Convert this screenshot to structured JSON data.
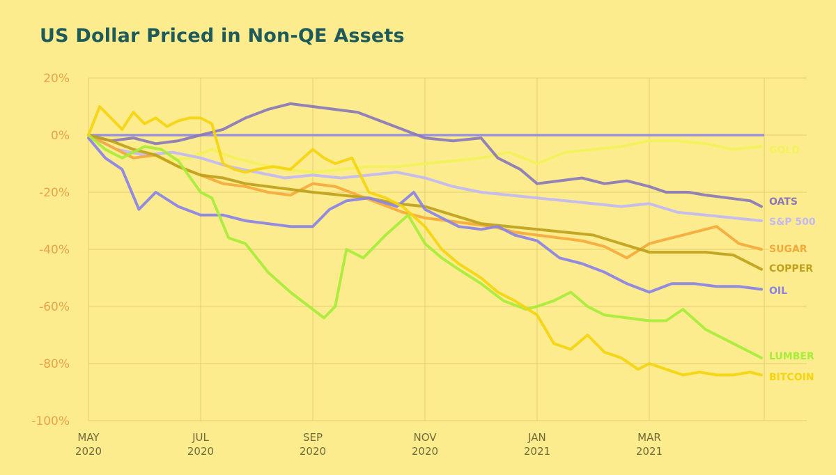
{
  "chart_data": {
    "type": "line",
    "title": "US Dollar Priced in Non-QE Assets",
    "xlabel": "",
    "ylabel": "",
    "ylim": [
      -100,
      20
    ],
    "y_ticks": [
      "20%",
      "0%",
      "-20%",
      "-40%",
      "-60%",
      "-80%",
      "-100%"
    ],
    "y_tick_values": [
      20,
      0,
      -20,
      -40,
      -60,
      -80,
      -100
    ],
    "x_ticks": [
      {
        "month": "MAY",
        "year": "2020",
        "t": 0
      },
      {
        "month": "JUL",
        "year": "2020",
        "t": 2
      },
      {
        "month": "SEP",
        "year": "2020",
        "t": 4
      },
      {
        "month": "NOV",
        "year": "2020",
        "t": 6
      },
      {
        "month": "JAN",
        "year": "2021",
        "t": 8
      },
      {
        "month": "MAR",
        "year": "2021",
        "t": 10
      }
    ],
    "x_range_months": [
      0,
      12.05
    ],
    "baseline_color": "#9a92d8",
    "series": [
      {
        "name": "GOLD",
        "color": "#f2f25a",
        "t": [
          0,
          0.3,
          0.6,
          1,
          1.4,
          1.8,
          2.2,
          2.6,
          3,
          3.5,
          4,
          4.5,
          5,
          5.5,
          6,
          6.5,
          7,
          7.5,
          8,
          8.5,
          9,
          9.5,
          10,
          10.5,
          11,
          11.5,
          12
        ],
        "values": [
          0,
          -3,
          -6,
          -6,
          -9,
          -8,
          -5,
          -8,
          -10,
          -12,
          -13,
          -12,
          -11,
          -11,
          -10,
          -9,
          -8,
          -6,
          -10,
          -6,
          -5,
          -4,
          -2,
          -2,
          -3,
          -5,
          -4
        ]
      },
      {
        "name": "OATS",
        "color": "#8a78b8",
        "t": [
          0,
          0.4,
          0.8,
          1.2,
          1.6,
          2,
          2.4,
          2.8,
          3.2,
          3.6,
          4,
          4.4,
          4.8,
          5.2,
          5.6,
          6,
          6.5,
          7,
          7.3,
          7.7,
          8,
          8.4,
          8.8,
          9.2,
          9.6,
          10,
          10.3,
          10.7,
          11,
          11.4,
          11.8,
          12
        ],
        "values": [
          0,
          -2,
          -1,
          -3,
          -2,
          0,
          2,
          6,
          9,
          11,
          10,
          9,
          8,
          5,
          2,
          -1,
          -2,
          -1,
          -8,
          -12,
          -17,
          -16,
          -15,
          -17,
          -16,
          -18,
          -20,
          -20,
          -21,
          -22,
          -23,
          -25
        ]
      },
      {
        "name": "S&P 500",
        "color": "#c2b8f4",
        "t": [
          0,
          0.5,
          1,
          1.5,
          2,
          2.5,
          3,
          3.5,
          4,
          4.5,
          5,
          5.5,
          6,
          6.5,
          7,
          7.5,
          8,
          8.5,
          9,
          9.5,
          10,
          10.5,
          11,
          11.5,
          12
        ],
        "values": [
          0,
          -5,
          -7,
          -6,
          -8,
          -11,
          -13,
          -15,
          -14,
          -15,
          -14,
          -13,
          -15,
          -18,
          -20,
          -21,
          -22,
          -23,
          -24,
          -25,
          -24,
          -27,
          -28,
          -29,
          -30
        ]
      },
      {
        "name": "SUGAR",
        "color": "#f5a93a",
        "t": [
          0,
          0.4,
          0.8,
          1.2,
          1.6,
          2,
          2.4,
          2.8,
          3.2,
          3.6,
          4,
          4.4,
          4.8,
          5.2,
          5.6,
          6,
          6.4,
          6.8,
          7.2,
          7.6,
          8,
          8.4,
          8.8,
          9.2,
          9.6,
          10,
          10.4,
          10.8,
          11.2,
          11.6,
          12
        ],
        "values": [
          0,
          -4,
          -8,
          -7,
          -11,
          -14,
          -17,
          -18,
          -20,
          -21,
          -17,
          -18,
          -21,
          -24,
          -27,
          -29,
          -30,
          -31,
          -32,
          -34,
          -35,
          -36,
          -37,
          -39,
          -43,
          -38,
          -36,
          -34,
          -32,
          -38,
          -40
        ]
      },
      {
        "name": "COPPER",
        "color": "#bfa21c",
        "t": [
          0,
          0.4,
          0.8,
          1.2,
          1.6,
          2,
          2.4,
          2.8,
          3.2,
          3.6,
          4,
          4.5,
          5,
          5.5,
          6,
          6.5,
          7,
          7.5,
          8,
          8.5,
          9,
          9.5,
          10,
          10.5,
          11,
          11.5,
          12
        ],
        "values": [
          0,
          -2,
          -5,
          -7,
          -11,
          -14,
          -15,
          -17,
          -18,
          -19,
          -20,
          -21,
          -22,
          -24,
          -25,
          -28,
          -31,
          -32,
          -33,
          -34,
          -35,
          -38,
          -41,
          -41,
          -41,
          -42,
          -47
        ]
      },
      {
        "name": "OIL",
        "color": "#8a82e8",
        "t": [
          0,
          0.3,
          0.6,
          0.9,
          1.2,
          1.6,
          2,
          2.4,
          2.8,
          3.2,
          3.6,
          4,
          4.3,
          4.6,
          5,
          5.5,
          5.8,
          6,
          6.3,
          6.6,
          7,
          7.3,
          7.6,
          8,
          8.4,
          8.8,
          9.2,
          9.6,
          10,
          10.4,
          10.8,
          11.2,
          11.6,
          12
        ],
        "values": [
          -1,
          -8,
          -12,
          -26,
          -20,
          -25,
          -28,
          -28,
          -30,
          -31,
          -32,
          -32,
          -26,
          -23,
          -22,
          -25,
          -20,
          -26,
          -29,
          -32,
          -33,
          -32,
          -35,
          -37,
          -43,
          -45,
          -48,
          -52,
          -55,
          -52,
          -52,
          -53,
          -53,
          -54
        ]
      },
      {
        "name": "LUMBER",
        "color": "#a8ec3a",
        "t": [
          0,
          0.3,
          0.6,
          1,
          1.3,
          1.6,
          2,
          2.2,
          2.5,
          2.8,
          3.2,
          3.6,
          4,
          4.2,
          4.4,
          4.6,
          4.9,
          5.3,
          5.7,
          6,
          6.3,
          6.6,
          7,
          7.4,
          7.8,
          8,
          8.3,
          8.6,
          8.9,
          9.2,
          9.6,
          10,
          10.3,
          10.6,
          11,
          11.4,
          11.8,
          12
        ],
        "values": [
          0,
          -5,
          -8,
          -4,
          -5,
          -9,
          -20,
          -22,
          -36,
          -38,
          -48,
          -55,
          -61,
          -64,
          -60,
          -40,
          -43,
          -35,
          -28,
          -38,
          -43,
          -47,
          -52,
          -58,
          -61,
          -60,
          -58,
          -55,
          -60,
          -63,
          -64,
          -65,
          -65,
          -61,
          -68,
          -72,
          -76,
          -78
        ]
      },
      {
        "name": "BITCOIN",
        "color": "#f5d40e",
        "t": [
          0,
          0.2,
          0.4,
          0.6,
          0.8,
          1,
          1.2,
          1.4,
          1.6,
          1.8,
          2,
          2.2,
          2.4,
          2.6,
          2.8,
          3,
          3.3,
          3.6,
          4,
          4.2,
          4.4,
          4.7,
          5,
          5.3,
          5.6,
          6,
          6.3,
          6.6,
          7,
          7.3,
          7.6,
          8,
          8.3,
          8.6,
          8.9,
          9.2,
          9.5,
          9.8,
          10,
          10.3,
          10.6,
          10.9,
          11.2,
          11.5,
          11.8,
          12
        ],
        "values": [
          0,
          10,
          6,
          2,
          8,
          4,
          6,
          3,
          5,
          6,
          6,
          4,
          -10,
          -12,
          -13,
          -12,
          -11,
          -12,
          -5,
          -8,
          -10,
          -8,
          -20,
          -22,
          -25,
          -32,
          -40,
          -45,
          -50,
          -55,
          -58,
          -63,
          -73,
          -75,
          -70,
          -76,
          -78,
          -82,
          -80,
          -82,
          -84,
          -83,
          -84,
          -84,
          -83,
          -84
        ]
      }
    ],
    "end_labels": [
      "GOLD",
      "OATS",
      "S&P 500",
      "SUGAR",
      "COPPER",
      "OIL",
      "LUMBER",
      "BITCOIN"
    ]
  }
}
